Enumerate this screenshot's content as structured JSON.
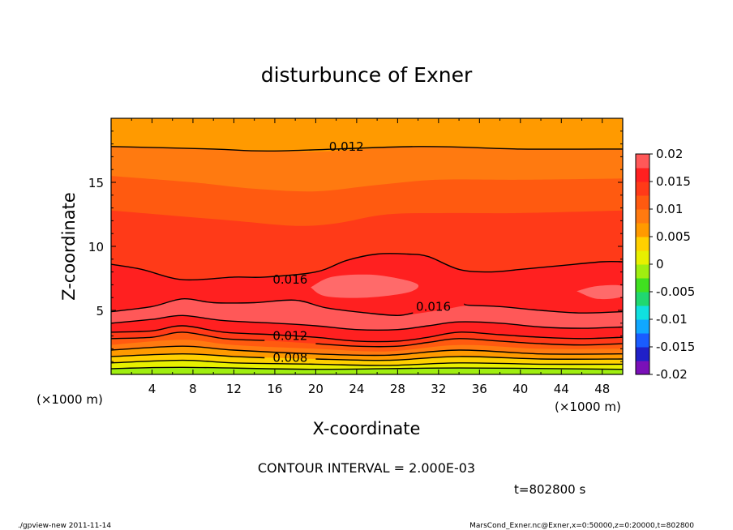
{
  "chart_data": {
    "type": "heatmap",
    "title": "disturbunce of Exner",
    "xlabel": "X-coordinate",
    "ylabel": "Z-coordinate",
    "x_unit": "(×1000 m)",
    "y_unit": "(×1000 m)",
    "xlim": [
      0,
      50
    ],
    "ylim": [
      0,
      20
    ],
    "x_ticks": [
      4,
      8,
      12,
      16,
      20,
      24,
      28,
      32,
      36,
      40,
      44,
      48
    ],
    "y_ticks": [
      5,
      10,
      15
    ],
    "contour_interval_text": "CONTOUR INTERVAL = 2.000E-03",
    "time_text": "t=802800 s",
    "colorbar": {
      "ticks": [
        "0.02",
        "0.015",
        "0.01",
        "0.005",
        "0",
        "-0.005",
        "-0.01",
        "-0.015",
        "-0.02"
      ],
      "min": -0.02,
      "max": 0.02,
      "step": 0.0025,
      "colors": [
        "#7a10b8",
        "#2020c8",
        "#1a5cff",
        "#10a8ff",
        "#10e0e0",
        "#20d870",
        "#40e020",
        "#a0ee10",
        "#e8f000",
        "#ffd000",
        "#ff9a00",
        "#ff7a10",
        "#ff5a10",
        "#ff3a18",
        "#ff2020",
        "#ff5858"
      ]
    },
    "contour_labels": [
      {
        "text": "0.012",
        "x": 23,
        "z": 17.8
      },
      {
        "text": "0.016",
        "x": 17.5,
        "z": 7.4
      },
      {
        "text": "0.016",
        "x": 31.5,
        "z": 5.3
      },
      {
        "text": "0.012",
        "x": 17.5,
        "z": 3.0
      },
      {
        "text": "0.008",
        "x": 17.5,
        "z": 1.3
      }
    ],
    "layers": [
      {
        "level": 0.0125,
        "color": "#ff9a00",
        "top": [
          [
            0,
            19.6
          ],
          [
            50,
            19.6
          ]
        ]
      },
      {
        "level": 0.013,
        "color": "#ff7a10",
        "top": [
          [
            0,
            17.8
          ],
          [
            10,
            17.6
          ],
          [
            20,
            17.4
          ],
          [
            30,
            17.8
          ],
          [
            40,
            17.6
          ],
          [
            50,
            17.6
          ]
        ]
      },
      {
        "level": 0.014,
        "color": "#ff5a10",
        "top": [
          [
            0,
            15.5
          ],
          [
            8,
            15.0
          ],
          [
            14,
            14.5
          ],
          [
            20,
            14.3
          ],
          [
            26,
            14.8
          ],
          [
            32,
            15.2
          ],
          [
            40,
            15.2
          ],
          [
            50,
            15.3
          ]
        ]
      },
      {
        "level": 0.015,
        "color": "#ff3a18",
        "top": [
          [
            0,
            12.8
          ],
          [
            6,
            12.4
          ],
          [
            12,
            12.0
          ],
          [
            18,
            11.6
          ],
          [
            22,
            11.8
          ],
          [
            27,
            12.5
          ],
          [
            33,
            12.6
          ],
          [
            40,
            12.6
          ],
          [
            50,
            12.8
          ]
        ]
      },
      {
        "level": 0.016,
        "color": "#ff2020",
        "top": [
          [
            0,
            8.6
          ],
          [
            3,
            8.2
          ],
          [
            7,
            7.4
          ],
          [
            12,
            7.6
          ],
          [
            17,
            7.6
          ],
          [
            20,
            8.0
          ],
          [
            23,
            8.9
          ],
          [
            26,
            9.4
          ],
          [
            29,
            9.4
          ],
          [
            31,
            9.2
          ],
          [
            34,
            8.2
          ],
          [
            37,
            8.0
          ],
          [
            40,
            8.2
          ],
          [
            44,
            8.5
          ],
          [
            48,
            8.8
          ],
          [
            50,
            8.8
          ]
        ]
      },
      {
        "level": 0.017,
        "color": "#ff5858",
        "top": [
          [
            0,
            4.9
          ],
          [
            4,
            5.3
          ],
          [
            7,
            5.9
          ],
          [
            10,
            5.6
          ],
          [
            14,
            5.6
          ],
          [
            18,
            5.8
          ],
          [
            21,
            5.2
          ],
          [
            25,
            4.8
          ],
          [
            28,
            4.6
          ],
          [
            32,
            5.0
          ],
          [
            35,
            5.4
          ],
          [
            38,
            5.3
          ],
          [
            42,
            5.0
          ],
          [
            46,
            4.8
          ],
          [
            50,
            4.9
          ]
        ]
      },
      {
        "level": 0.016,
        "color": "#ff2020",
        "top": [
          [
            0,
            4.0
          ],
          [
            4,
            4.3
          ],
          [
            7,
            4.6
          ],
          [
            11,
            4.2
          ],
          [
            16,
            4.0
          ],
          [
            20,
            3.8
          ],
          [
            24,
            3.5
          ],
          [
            28,
            3.5
          ],
          [
            31,
            3.8
          ],
          [
            34,
            4.1
          ],
          [
            38,
            4.0
          ],
          [
            42,
            3.7
          ],
          [
            46,
            3.6
          ],
          [
            50,
            3.7
          ]
        ]
      },
      {
        "level": 0.014,
        "color": "#ff3a18",
        "top": [
          [
            0,
            3.3
          ],
          [
            4,
            3.4
          ],
          [
            7,
            3.8
          ],
          [
            11,
            3.3
          ],
          [
            16,
            3.1
          ],
          [
            20,
            2.9
          ],
          [
            24,
            2.6
          ],
          [
            28,
            2.6
          ],
          [
            31,
            2.9
          ],
          [
            34,
            3.3
          ],
          [
            38,
            3.1
          ],
          [
            42,
            2.9
          ],
          [
            46,
            2.8
          ],
          [
            50,
            2.9
          ]
        ]
      },
      {
        "level": 0.012,
        "color": "#ff5a10",
        "top": [
          [
            0,
            2.8
          ],
          [
            4,
            2.9
          ],
          [
            7,
            3.3
          ],
          [
            11,
            2.8
          ],
          [
            16,
            2.6
          ],
          [
            20,
            2.4
          ],
          [
            24,
            2.2
          ],
          [
            28,
            2.2
          ],
          [
            31,
            2.5
          ],
          [
            34,
            2.8
          ],
          [
            38,
            2.6
          ],
          [
            42,
            2.4
          ],
          [
            46,
            2.3
          ],
          [
            50,
            2.4
          ]
        ]
      },
      {
        "level": 0.011,
        "color": "#ff7a10",
        "top": [
          [
            0,
            2.3
          ],
          [
            7,
            2.7
          ],
          [
            12,
            2.3
          ],
          [
            20,
            2.0
          ],
          [
            27,
            1.8
          ],
          [
            34,
            2.3
          ],
          [
            42,
            2.0
          ],
          [
            50,
            2.0
          ]
        ]
      },
      {
        "level": 0.01,
        "color": "#ff9a00",
        "top": [
          [
            0,
            1.9
          ],
          [
            7,
            2.2
          ],
          [
            12,
            1.9
          ],
          [
            20,
            1.6
          ],
          [
            27,
            1.5
          ],
          [
            34,
            1.9
          ],
          [
            42,
            1.6
          ],
          [
            50,
            1.6
          ]
        ]
      },
      {
        "level": 0.008,
        "color": "#ffd000",
        "top": [
          [
            0,
            1.4
          ],
          [
            7,
            1.6
          ],
          [
            12,
            1.4
          ],
          [
            20,
            1.2
          ],
          [
            27,
            1.1
          ],
          [
            34,
            1.4
          ],
          [
            42,
            1.2
          ],
          [
            50,
            1.2
          ]
        ]
      },
      {
        "level": 0.006,
        "color": "#e8f000",
        "top": [
          [
            0,
            0.9
          ],
          [
            7,
            1.1
          ],
          [
            12,
            0.9
          ],
          [
            20,
            0.8
          ],
          [
            27,
            0.7
          ],
          [
            34,
            0.9
          ],
          [
            42,
            0.8
          ],
          [
            50,
            0.8
          ]
        ]
      },
      {
        "level": 0.004,
        "color": "#a0ee10",
        "top": [
          [
            0,
            0.45
          ],
          [
            7,
            0.55
          ],
          [
            20,
            0.4
          ],
          [
            34,
            0.5
          ],
          [
            50,
            0.4
          ]
        ]
      }
    ],
    "blobs": [
      {
        "level": 0.018,
        "color": "#ff6a6a",
        "points": [
          [
            19.5,
            6.8
          ],
          [
            21.5,
            7.6
          ],
          [
            25,
            7.8
          ],
          [
            28,
            7.5
          ],
          [
            30,
            7.0
          ],
          [
            29,
            6.4
          ],
          [
            25,
            6.0
          ],
          [
            21,
            6.1
          ]
        ]
      },
      {
        "level": 0.018,
        "color": "#ff6a6a",
        "points": [
          [
            45.5,
            6.5
          ],
          [
            47.5,
            6.9
          ],
          [
            50,
            6.9
          ],
          [
            50,
            6.1
          ],
          [
            47.5,
            5.9
          ]
        ]
      }
    ],
    "contour_lines": [
      [
        [
          0,
          17.8
        ],
        [
          10,
          17.6
        ],
        [
          16,
          17.45
        ],
        [
          30,
          17.8
        ],
        [
          40,
          17.6
        ],
        [
          50,
          17.6
        ]
      ],
      [
        [
          0,
          8.6
        ],
        [
          3,
          8.2
        ],
        [
          7,
          7.4
        ],
        [
          12,
          7.6
        ],
        [
          15,
          7.6
        ],
        [
          20,
          8.0
        ],
        [
          23,
          8.9
        ],
        [
          26,
          9.4
        ],
        [
          29,
          9.4
        ],
        [
          31,
          9.2
        ],
        [
          34,
          8.2
        ],
        [
          37,
          8.0
        ],
        [
          40,
          8.2
        ],
        [
          44,
          8.5
        ],
        [
          48,
          8.8
        ],
        [
          50,
          8.8
        ]
      ],
      [
        [
          0,
          4.9
        ],
        [
          4,
          5.3
        ],
        [
          7,
          5.9
        ],
        [
          10,
          5.6
        ],
        [
          14,
          5.6
        ],
        [
          18,
          5.8
        ],
        [
          21,
          5.2
        ],
        [
          25,
          4.8
        ],
        [
          28,
          4.6
        ],
        [
          29.5,
          4.8
        ]
      ],
      [
        [
          34.5,
          5.5
        ],
        [
          35,
          5.4
        ],
        [
          38,
          5.3
        ],
        [
          42,
          5.0
        ],
        [
          46,
          4.8
        ],
        [
          50,
          4.9
        ]
      ],
      [
        [
          0,
          4.0
        ],
        [
          4,
          4.3
        ],
        [
          7,
          4.6
        ],
        [
          11,
          4.2
        ],
        [
          16,
          4.0
        ],
        [
          20,
          3.8
        ],
        [
          24,
          3.5
        ],
        [
          28,
          3.5
        ],
        [
          31,
          3.8
        ],
        [
          34,
          4.1
        ],
        [
          38,
          4.0
        ],
        [
          42,
          3.7
        ],
        [
          46,
          3.6
        ],
        [
          50,
          3.7
        ]
      ],
      [
        [
          0,
          3.3
        ],
        [
          4,
          3.4
        ],
        [
          7,
          3.8
        ],
        [
          11,
          3.3
        ],
        [
          16,
          3.1
        ],
        [
          20,
          2.9
        ],
        [
          24,
          2.6
        ],
        [
          28,
          2.6
        ],
        [
          31,
          2.9
        ],
        [
          34,
          3.3
        ],
        [
          38,
          3.1
        ],
        [
          42,
          2.9
        ],
        [
          46,
          2.8
        ],
        [
          50,
          2.9
        ]
      ],
      [
        [
          0,
          2.8
        ],
        [
          4,
          2.9
        ],
        [
          7,
          3.3
        ],
        [
          11,
          2.8
        ],
        [
          15,
          2.65
        ]
      ],
      [
        [
          20,
          2.4
        ],
        [
          24,
          2.2
        ],
        [
          28,
          2.2
        ],
        [
          31,
          2.5
        ],
        [
          34,
          2.8
        ],
        [
          38,
          2.6
        ],
        [
          42,
          2.4
        ],
        [
          46,
          2.3
        ],
        [
          50,
          2.4
        ]
      ],
      [
        [
          0,
          1.9
        ],
        [
          7,
          2.2
        ],
        [
          12,
          1.9
        ],
        [
          20,
          1.6
        ],
        [
          27,
          1.5
        ],
        [
          34,
          1.9
        ],
        [
          42,
          1.6
        ],
        [
          50,
          1.6
        ]
      ],
      [
        [
          0,
          1.4
        ],
        [
          7,
          1.6
        ],
        [
          12,
          1.4
        ],
        [
          15,
          1.3
        ]
      ],
      [
        [
          20,
          1.2
        ],
        [
          27,
          1.1
        ],
        [
          34,
          1.4
        ],
        [
          42,
          1.2
        ],
        [
          50,
          1.2
        ]
      ],
      [
        [
          0,
          0.9
        ],
        [
          7,
          1.1
        ],
        [
          12,
          0.9
        ],
        [
          20,
          0.8
        ],
        [
          27,
          0.7
        ],
        [
          34,
          0.9
        ],
        [
          42,
          0.8
        ],
        [
          50,
          0.8
        ]
      ],
      [
        [
          0,
          0.45
        ],
        [
          7,
          0.55
        ],
        [
          20,
          0.4
        ],
        [
          34,
          0.5
        ],
        [
          50,
          0.4
        ]
      ]
    ]
  },
  "footer": {
    "left": "./gpview-new   2011-11-14",
    "right": "MarsCond_Exner.nc@Exner,x=0:50000,z=0:20000,t=802800"
  }
}
